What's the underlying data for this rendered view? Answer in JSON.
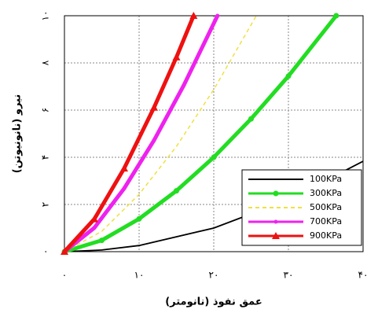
{
  "chart_data": {
    "type": "line",
    "xlabel": "عمق نفوذ (نانومتر)",
    "ylabel": "نیرو (نانونیوتن)",
    "xlim": [
      0,
      40
    ],
    "ylim": [
      0,
      10
    ],
    "xticks": [
      {
        "value": 0,
        "label": "۰"
      },
      {
        "value": 10,
        "label": "۱۰"
      },
      {
        "value": 20,
        "label": "۲۰"
      },
      {
        "value": 30,
        "label": "۳۰"
      },
      {
        "value": 40,
        "label": "۴۰"
      }
    ],
    "yticks": [
      {
        "value": 0,
        "label": "۰"
      },
      {
        "value": 2,
        "label": "۲"
      },
      {
        "value": 4,
        "label": "۴"
      },
      {
        "value": 6,
        "label": "۶"
      },
      {
        "value": 8,
        "label": "۸"
      },
      {
        "value": 10,
        "label": "۱۰"
      }
    ],
    "grid": true,
    "legend": "lower right",
    "series": [
      {
        "name": "100KPa",
        "color": "#000000",
        "linestyle": "solid",
        "marker": "none",
        "x": [
          0,
          5,
          10,
          20,
          30,
          40
        ],
        "values": [
          0,
          0.07,
          0.26,
          1,
          2.2,
          3.83
        ]
      },
      {
        "name": "300KPa",
        "color": "#22dd22",
        "linestyle": "solid",
        "marker": "circle",
        "x": [
          0,
          5,
          10,
          15,
          20,
          25,
          30,
          36.4
        ],
        "values": [
          0,
          0.48,
          1.39,
          2.58,
          4,
          5.63,
          7.44,
          10
        ]
      },
      {
        "name": "500KPa",
        "color": "#f0e040",
        "linestyle": "dashed",
        "marker": "none",
        "x": [
          0,
          5,
          10,
          15,
          20,
          25.7
        ],
        "values": [
          0,
          0.86,
          2.43,
          4.46,
          6.87,
          10
        ]
      },
      {
        "name": "700KPa",
        "color": "#ee22ee",
        "linestyle": "solid",
        "marker": "dot",
        "x": [
          0,
          4,
          8,
          12,
          16,
          20.5
        ],
        "values": [
          0,
          1.01,
          2.68,
          4.72,
          7.06,
          10
        ]
      },
      {
        "name": "900KPa",
        "color": "#ee1111",
        "linestyle": "solid",
        "marker": "triangle",
        "x": [
          0,
          4,
          8,
          12,
          15,
          17.3
        ],
        "values": [
          0,
          1.38,
          3.53,
          6.11,
          8.24,
          10
        ]
      }
    ]
  }
}
